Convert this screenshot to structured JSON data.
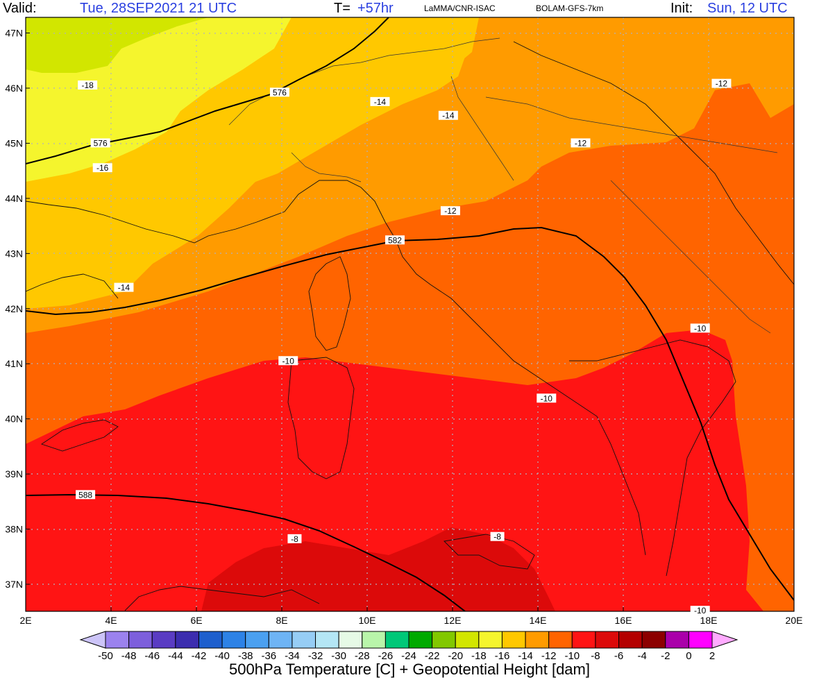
{
  "header": {
    "valid_label": "Valid:",
    "valid_value": "Tue, 28SEP2021   21 UTC",
    "t_label": "T=",
    "t_value": "+57hr",
    "provider": "LaMMA/CNR-ISAC",
    "model": "BOLAM-GFS-7km",
    "init_label": "Init:",
    "init_value": "Sun, 12 UTC"
  },
  "map": {
    "lat_labels": [
      "47N",
      "46N",
      "45N",
      "44N",
      "43N",
      "42N",
      "41N",
      "40N",
      "39N",
      "38N",
      "37N"
    ],
    "lat_values": [
      47,
      46,
      45,
      44,
      43,
      42,
      41,
      40,
      39,
      38,
      37
    ],
    "lon_labels": [
      "2E",
      "4E",
      "6E",
      "8E",
      "10E",
      "12E",
      "14E",
      "16E",
      "18E",
      "20E"
    ],
    "lon_values": [
      2,
      4,
      6,
      8,
      10,
      12,
      14,
      16,
      18,
      20
    ],
    "lon_range": [
      2,
      20
    ],
    "lat_range": [
      36.5,
      47.3
    ],
    "temp_labels": [
      {
        "text": "-18",
        "lon": 3.45,
        "lat": 46.05
      },
      {
        "text": "-16",
        "lon": 3.8,
        "lat": 44.55
      },
      {
        "text": "-14",
        "lon": 10.3,
        "lat": 45.75
      },
      {
        "text": "-14",
        "lon": 11.9,
        "lat": 45.5
      },
      {
        "text": "-12",
        "lon": 15.0,
        "lat": 45.0
      },
      {
        "text": "-12",
        "lon": 18.3,
        "lat": 46.08
      },
      {
        "text": "-12",
        "lon": 11.95,
        "lat": 43.77
      },
      {
        "text": "-14",
        "lon": 4.3,
        "lat": 42.38
      },
      {
        "text": "-10",
        "lon": 17.8,
        "lat": 41.64
      },
      {
        "text": "-10",
        "lon": 8.15,
        "lat": 41.05
      },
      {
        "text": "-10",
        "lon": 14.2,
        "lat": 40.37
      },
      {
        "text": "-8",
        "lon": 8.3,
        "lat": 37.82
      },
      {
        "text": "-8",
        "lon": 13.05,
        "lat": 37.86
      },
      {
        "text": "-10",
        "lon": 17.8,
        "lat": 36.52
      }
    ],
    "height_labels": [
      {
        "text": "576",
        "lon": 7.95,
        "lat": 45.92
      },
      {
        "text": "576",
        "lon": 3.75,
        "lat": 45.0
      },
      {
        "text": "582",
        "lon": 10.65,
        "lat": 43.24
      },
      {
        "text": "588",
        "lon": 3.4,
        "lat": 38.62
      }
    ]
  },
  "colorbar": {
    "labels": [
      "-50",
      "-48",
      "-46",
      "-44",
      "-42",
      "-40",
      "-38",
      "-36",
      "-34",
      "-32",
      "-30",
      "-28",
      "-26",
      "-24",
      "-22",
      "-20",
      "-18",
      "-16",
      "-14",
      "-12",
      "-10",
      "-8",
      "-6",
      "-4",
      "-2",
      "0",
      "2"
    ],
    "colors": [
      "#b9a0f7",
      "#9b82ee",
      "#7d5fdc",
      "#5a3cc3",
      "#3c2daf",
      "#1e5fcd",
      "#2d82e6",
      "#4ba0f0",
      "#6eb4f5",
      "#96cdf5",
      "#b4e6f5",
      "#e6fae6",
      "#b9f5aa",
      "#00c878",
      "#00aa00",
      "#82c800",
      "#d2e600",
      "#f5f52d",
      "#ffc800",
      "#ff9b00",
      "#ff6400",
      "#ff1414",
      "#dc0a0a",
      "#b40000",
      "#8c0000",
      "#aa00aa",
      "#ff00ff"
    ],
    "left_arrow_color": "#ccc4f8",
    "right_arrow_color": "#ffaaff"
  },
  "footer": {
    "title": "500hPa Temperature [C] + Geopotential Height [dam]"
  }
}
